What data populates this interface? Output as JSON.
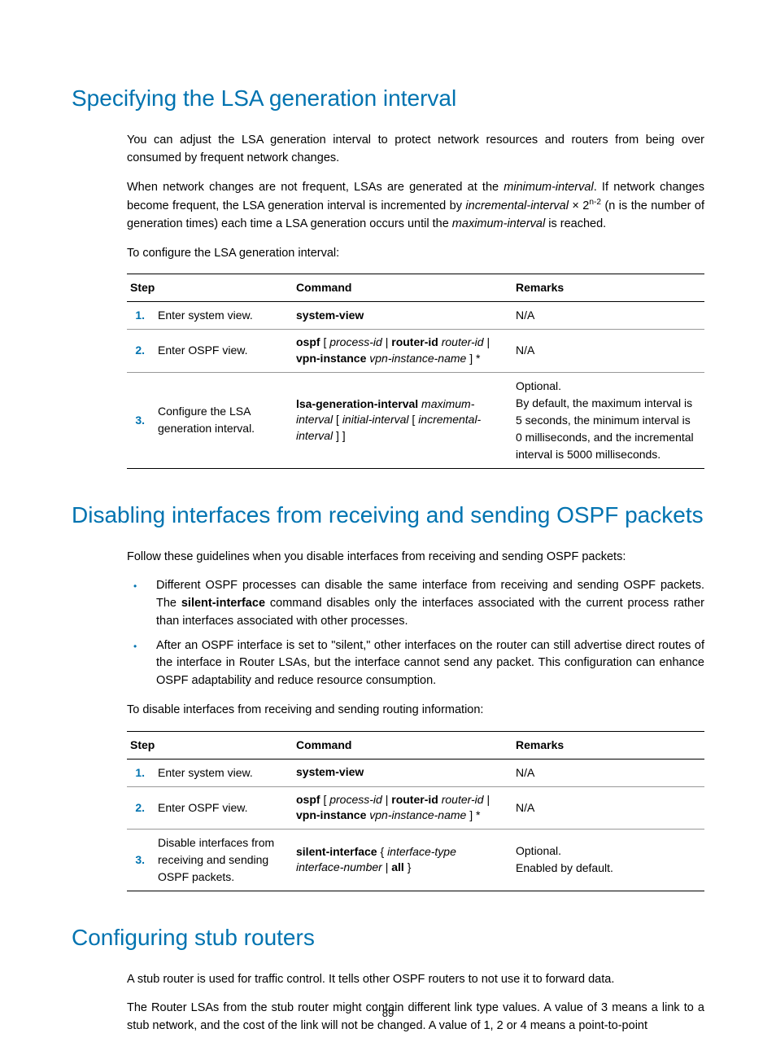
{
  "colors": {
    "accent": "#0073b0",
    "text": "#000000",
    "rule": "#000000",
    "row_rule": "#999999",
    "background": "#ffffff"
  },
  "page_number": "89",
  "section1": {
    "heading": "Specifying the LSA generation interval",
    "para1": "You can adjust the LSA generation interval to protect network resources and routers from being over consumed by frequent network changes.",
    "para2_a": "When network changes are not frequent, LSAs are generated at the ",
    "para2_min": "minimum-interval",
    "para2_b": ". If network changes become frequent, the LSA generation interval is incremented by ",
    "para2_inc": "incremental-interval",
    "para2_c": " × 2",
    "para2_exp": "n-2",
    "para2_d": " (n is the number of generation times) each time a LSA generation occurs until the ",
    "para2_max": "maximum-interval",
    "para2_e": " is reached.",
    "para3": "To configure the LSA generation interval:",
    "table": {
      "headers": {
        "step": "Step",
        "cmd": "Command",
        "rem": "Remarks"
      },
      "rows": [
        {
          "num": "1.",
          "desc": "Enter system view.",
          "cmd_html": "<span class='cmd-bold'>system-view</span>",
          "rem_html": "N/A"
        },
        {
          "num": "2.",
          "desc": "Enter OSPF view.",
          "cmd_html": "<span class='cmd-bold'>ospf</span> [ <span class='cmd-ital'>process-id</span> | <span class='cmd-bold'>router-id</span> <span class='cmd-ital'>router-id</span> | <span class='cmd-bold'>vpn-instance</span> <span class='cmd-ital'>vpn-instance-name</span> ] *",
          "rem_html": "N/A"
        },
        {
          "num": "3.",
          "desc": "Configure the LSA generation interval.",
          "cmd_html": "<span class='cmd-bold'>lsa-generation-interval</span> <span class='cmd-ital'>maximum-interval</span> [ <span class='cmd-ital'>initial-interval</span> [ <span class='cmd-ital'>incremental-interval</span> ] ]",
          "rem_html": "Optional.<br>By default, the maximum interval is 5 seconds, the minimum interval is 0 milliseconds, and the incremental interval is 5000 milliseconds."
        }
      ]
    }
  },
  "section2": {
    "heading": "Disabling interfaces from receiving and sending OSPF packets",
    "para1": "Follow these guidelines when you disable interfaces from receiving and sending OSPF packets:",
    "bullets": [
      {
        "a": "Different OSPF processes can disable the same interface from receiving and sending OSPF packets. The ",
        "b": "silent-interface",
        "c": " command disables only the interfaces associated with the current process rather than interfaces associated with other processes."
      },
      {
        "a": "After an OSPF interface is set to \"silent,\" other interfaces on the router can still advertise direct routes of the interface in Router LSAs, but the interface cannot send any packet. This configuration can enhance OSPF adaptability and reduce resource consumption.",
        "b": "",
        "c": ""
      }
    ],
    "para2": "To disable interfaces from receiving and sending routing information:",
    "table": {
      "headers": {
        "step": "Step",
        "cmd": "Command",
        "rem": "Remarks"
      },
      "rows": [
        {
          "num": "1.",
          "desc": "Enter system view.",
          "cmd_html": "<span class='cmd-bold'>system-view</span>",
          "rem_html": "N/A"
        },
        {
          "num": "2.",
          "desc": "Enter OSPF view.",
          "cmd_html": "<span class='cmd-bold'>ospf</span> [ <span class='cmd-ital'>process-id</span> | <span class='cmd-bold'>router-id</span> <span class='cmd-ital'>router-id</span> | <span class='cmd-bold'>vpn-instance</span> <span class='cmd-ital'>vpn-instance-name</span> ] *",
          "rem_html": "N/A"
        },
        {
          "num": "3.",
          "desc": "Disable interfaces from receiving and sending OSPF packets.",
          "cmd_html": "<span class='cmd-bold'>silent-interface</span> { <span class='cmd-ital'>interface-type interface-number</span> | <span class='cmd-bold'>all</span> }",
          "rem_html": "Optional.<br>Enabled by default."
        }
      ]
    }
  },
  "section3": {
    "heading": "Configuring stub routers",
    "para1": "A stub router is used for traffic control. It tells other OSPF routers to not use it to forward data.",
    "para2": "The Router LSAs from the stub router might contain different link type values. A value of 3 means a link to a stub network, and the cost of the link will not be changed. A value of 1, 2 or 4 means a point-to-point"
  }
}
